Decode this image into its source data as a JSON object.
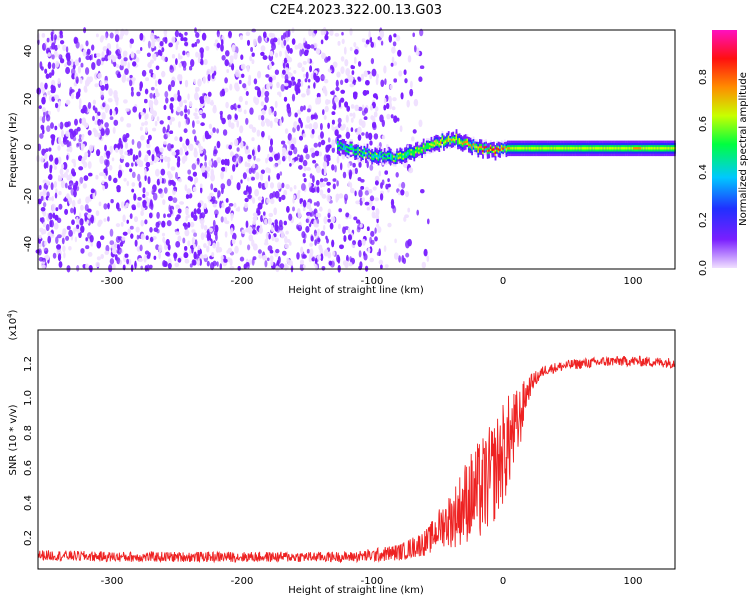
{
  "figure_title": "C2E4.2023.322.00.13.G03",
  "colors": {
    "snr_line": "#ee2222",
    "frame": "#000000",
    "scatter_bg": "#7a1fff"
  },
  "chart_data": [
    {
      "type": "heatmap",
      "title": "",
      "xlabel": "Height of straight line (km)",
      "ylabel": "Frequency (Hz)",
      "xlim": [
        -360,
        130
      ],
      "ylim": [
        -50,
        49
      ],
      "xticks": [
        -300,
        -200,
        -100,
        0,
        100
      ],
      "xtick_labels": [
        "-300",
        "-200",
        "-100",
        "0",
        "100"
      ],
      "yticks": [
        -40,
        -20,
        0,
        20,
        40
      ],
      "ytick_labels": [
        "-40",
        "-20",
        "0",
        "20",
        "40"
      ],
      "colorbar": {
        "label": "Normalized spectral amplitude",
        "range": [
          0,
          1
        ],
        "ticks": [
          0,
          0.2,
          0.4,
          0.6,
          0.8
        ],
        "tick_labels": [
          "0.0",
          "0.2",
          "0.4",
          "0.6",
          "0.8"
        ],
        "colormap": [
          "#f0e0ff",
          "#7a1fff",
          "#2030ff",
          "#00c8ff",
          "#00ff40",
          "#c8ff00",
          "#ff8c00",
          "#ff1010",
          "#ff10c0"
        ]
      },
      "description_ridge": {
        "x": [
          -130,
          -120,
          -110,
          -100,
          -90,
          -80,
          -70,
          -60,
          -50,
          -40,
          -30,
          -20,
          -10,
          0,
          20,
          40,
          60,
          80,
          100,
          130
        ],
        "freq": [
          1,
          0,
          -2,
          -3,
          -4,
          -3,
          -1,
          1,
          3,
          4,
          2,
          0,
          -1,
          0,
          0,
          0,
          0,
          0,
          0,
          0
        ],
        "amplitude": [
          0.3,
          0.35,
          0.3,
          0.3,
          0.35,
          0.45,
          0.55,
          0.6,
          0.65,
          0.6,
          0.7,
          0.8,
          0.85,
          0.7,
          0.6,
          0.6,
          0.6,
          0.6,
          0.7,
          0.6
        ]
      },
      "noise_region_x": [
        -360,
        -95
      ]
    },
    {
      "type": "line",
      "title": "",
      "xlabel": "Height of straight line (km)",
      "ylabel": "SNR (10 * v/v)",
      "y_multiplier_label": "(x10",
      "y_multiplier_exp": "4",
      "xlim": [
        -360,
        130
      ],
      "ylim": [
        0,
        1.38
      ],
      "xticks": [
        -300,
        -200,
        -100,
        0,
        100
      ],
      "xtick_labels": [
        "-300",
        "-200",
        "-100",
        "0",
        "100"
      ],
      "yticks": [
        0.2,
        0.4,
        0.6,
        0.8,
        1.0,
        1.2
      ],
      "ytick_labels": [
        "0.2",
        "0.4",
        "0.6",
        "0.8",
        "1.0",
        "1.2"
      ],
      "envelope": {
        "x": [
          -360,
          -300,
          -200,
          -120,
          -100,
          -80,
          -60,
          -50,
          -40,
          -30,
          -20,
          -10,
          0,
          10,
          15,
          20,
          30,
          50,
          80,
          100,
          130
        ],
        "mean": [
          0.08,
          0.07,
          0.07,
          0.07,
          0.08,
          0.1,
          0.16,
          0.25,
          0.3,
          0.4,
          0.45,
          0.55,
          0.7,
          0.85,
          1.0,
          1.08,
          1.15,
          1.18,
          1.2,
          1.2,
          1.19
        ],
        "noise": [
          0.03,
          0.03,
          0.03,
          0.03,
          0.04,
          0.05,
          0.08,
          0.12,
          0.18,
          0.25,
          0.3,
          0.3,
          0.3,
          0.2,
          0.1,
          0.05,
          0.03,
          0.03,
          0.03,
          0.03,
          0.03
        ]
      }
    }
  ]
}
